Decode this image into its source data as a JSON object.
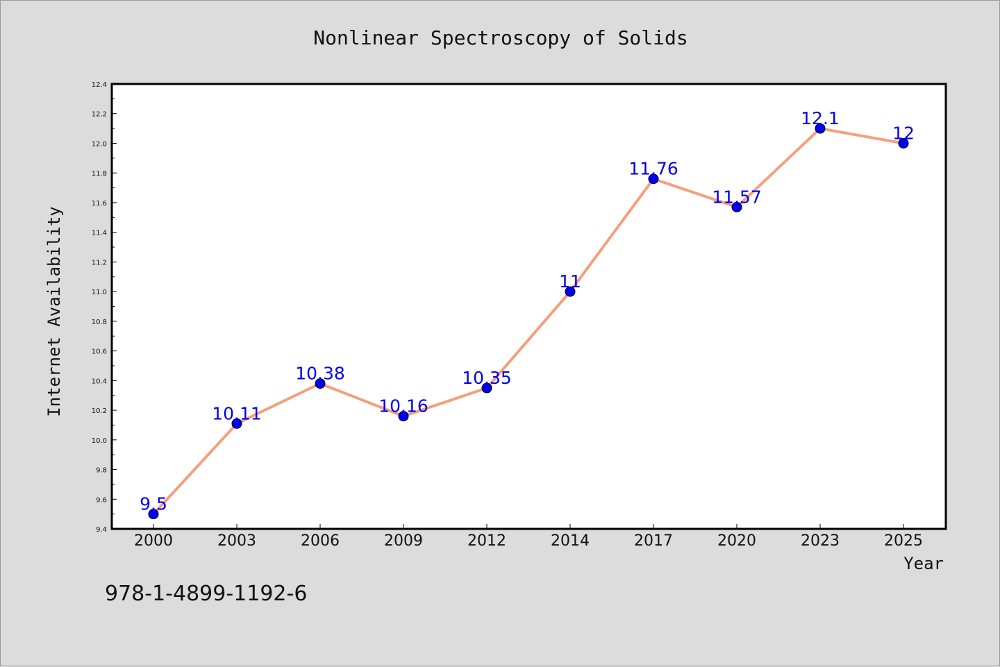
{
  "chart_data": {
    "type": "line",
    "title": "Nonlinear Spectroscopy of Solids",
    "xlabel": "Year",
    "ylabel": "Internet Availability",
    "categories": [
      "2000",
      "2003",
      "2006",
      "2009",
      "2012",
      "2014",
      "2017",
      "2020",
      "2023",
      "2025"
    ],
    "series": [
      {
        "values": [
          9.5,
          10.11,
          10.38,
          10.16,
          10.35,
          11,
          11.76,
          11.57,
          12.1,
          12
        ],
        "data_labels": [
          "9.5",
          "10.11",
          "10.38",
          "10.16",
          "10.35",
          "11",
          "11.76",
          "11.57",
          "12.1",
          "12"
        ]
      }
    ],
    "ylim": [
      9.4,
      12.4
    ],
    "yticks": [
      "9.4",
      "9.6",
      "9.8",
      "10.0",
      "10.2",
      "10.4",
      "10.6",
      "10.8",
      "11.0",
      "11.2",
      "11.4",
      "11.6",
      "11.8",
      "12.0",
      "12.2",
      "12.4"
    ],
    "grid": false,
    "legend": "none",
    "colors": {
      "line": "#f4a07c",
      "marker": "#0000ee",
      "data_label": "#0000ee",
      "plot_background": "#ffffff",
      "figure_background": "#dcdcdc"
    }
  },
  "annotation": {
    "isbn": "978-1-4899-1192-6"
  }
}
